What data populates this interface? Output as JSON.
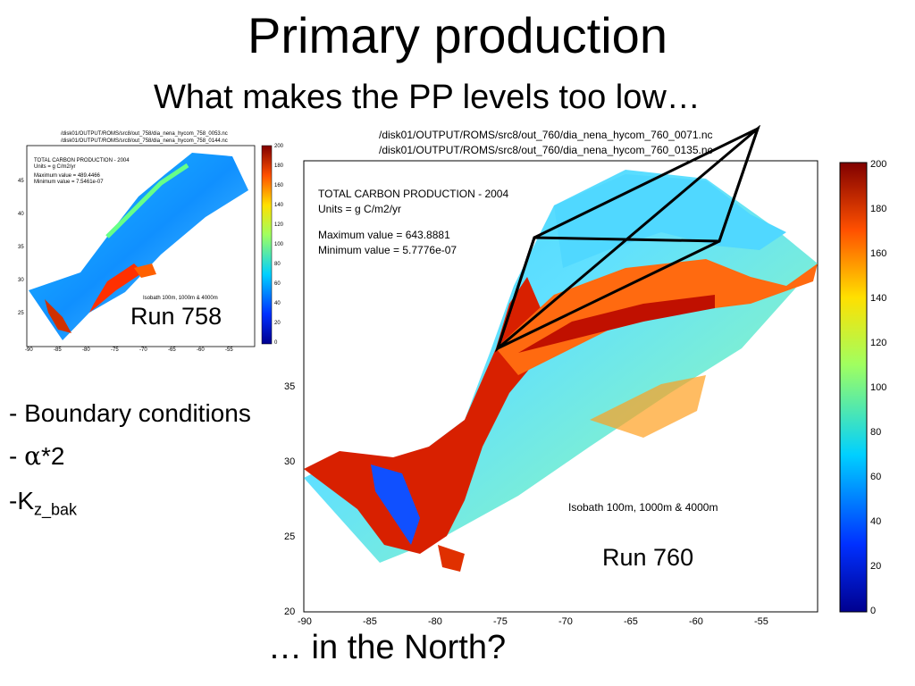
{
  "slide": {
    "title": "Primary production",
    "subtitle": "What makes the PP levels too low…",
    "bottom_text": "… in the North?"
  },
  "bullets": {
    "b1": "- Boundary conditions",
    "b2_prefix": "- ",
    "b2_alpha": "α",
    "b2_suffix": "*2",
    "b3_prefix": "-K",
    "b3_sub": "z_bak"
  },
  "small_map": {
    "path_line1": "/disk01/OUTPUT/ROMS/src8/out_758/dia_nena_hycom_758_0053.nc",
    "path_line2": "/disk01/OUTPUT/ROMS/src8/out_758/dia_nena_hycom_758_0144.nc",
    "info_title": "TOTAL CARBON PRODUCTION - 2004",
    "info_units": "Units = g C/m2/yr",
    "info_max": "Maximum value = 489.4466",
    "info_min": "Minimum value = 7.5461e-07",
    "isobath": "Isobath 100m, 1000m & 4000m",
    "run_label": "Run 758",
    "x_ticks": [
      "-90",
      "-85",
      "-80",
      "-75",
      "-70",
      "-65",
      "-60",
      "-55"
    ],
    "y_ticks": [
      "45",
      "40",
      "35",
      "30",
      "25"
    ],
    "colorbar_ticks": [
      "200",
      "180",
      "160",
      "140",
      "120",
      "100",
      "80",
      "60",
      "40",
      "20",
      "0"
    ]
  },
  "large_map": {
    "path_line1": "/disk01/OUTPUT/ROMS/src8/out_760/dia_nena_hycom_760_0071.nc",
    "path_line2": "/disk01/OUTPUT/ROMS/src8/out_760/dia_nena_hycom_760_0135.nc",
    "info_title": "TOTAL CARBON PRODUCTION - 2004",
    "info_units": "Units = g C/m2/yr",
    "info_max": "Maximum value = 643.8881",
    "info_min": "Minimum value = 5.7776e-07",
    "isobath": "Isobath 100m, 1000m & 4000m",
    "run_label": "Run 760",
    "x_ticks": [
      "-90",
      "-85",
      "-80",
      "-75",
      "-70",
      "-65",
      "-60",
      "-55"
    ],
    "y_ticks": [
      "35",
      "30",
      "25",
      "20"
    ],
    "colorbar_ticks": [
      "200",
      "180",
      "160",
      "140",
      "120",
      "100",
      "80",
      "60",
      "40",
      "20",
      "0"
    ]
  }
}
